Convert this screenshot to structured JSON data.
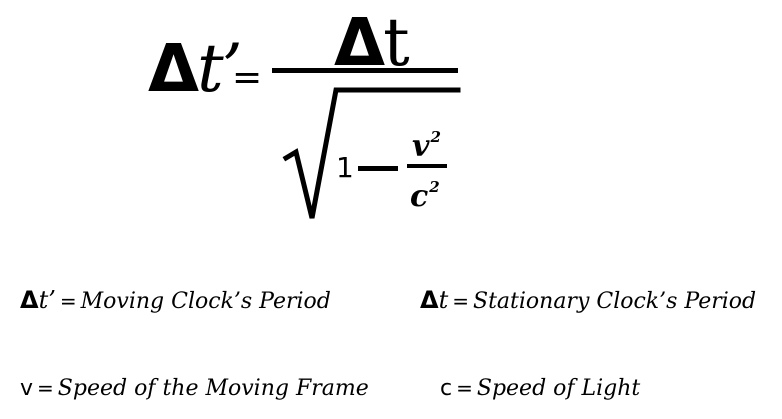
{
  "formula": {
    "lhs_delta": "Δ",
    "lhs_var": "t’",
    "equals": "=",
    "numerator_delta": "Δ",
    "numerator_var": "t",
    "one": "1",
    "velocity": "v",
    "velocity_exponent": "2",
    "light": "c",
    "light_exponent": "2"
  },
  "legend": {
    "moving_period": {
      "delta": "Δ",
      "var": "t’",
      "equals": "=",
      "text": "Moving Clock’s Period"
    },
    "stationary_period": {
      "delta": "Δ",
      "var": "t",
      "equals": "=",
      "text": "Stationary Clock’s Period"
    },
    "speed_frame": {
      "var": "v",
      "equals": "=",
      "text": "Speed of the Moving Frame"
    },
    "speed_light": {
      "var": "c",
      "equals": "=",
      "text": "Speed of Light"
    }
  }
}
